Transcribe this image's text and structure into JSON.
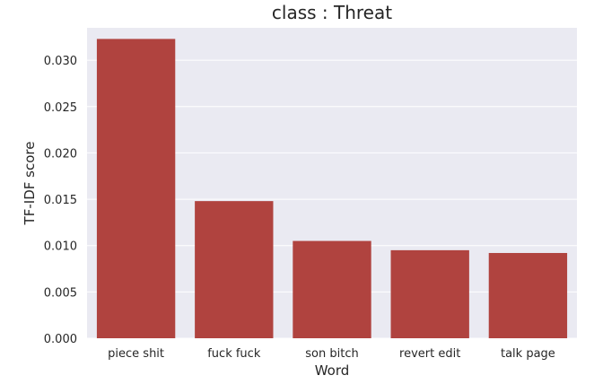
{
  "chart_data": {
    "type": "bar",
    "title": "class : Threat",
    "xlabel": "Word",
    "ylabel": "TF-IDF score",
    "categories": [
      "piece shit",
      "fuck fuck",
      "son bitch",
      "revert edit",
      "talk page"
    ],
    "values": [
      0.0323,
      0.0148,
      0.0105,
      0.0095,
      0.0092
    ],
    "ylim": [
      0,
      0.0335
    ],
    "yticks": [
      "0.000",
      "0.005",
      "0.010",
      "0.015",
      "0.020",
      "0.025",
      "0.030"
    ],
    "grid": true,
    "bar_color": "#b0433f",
    "background_color": "#eaeaf2"
  }
}
